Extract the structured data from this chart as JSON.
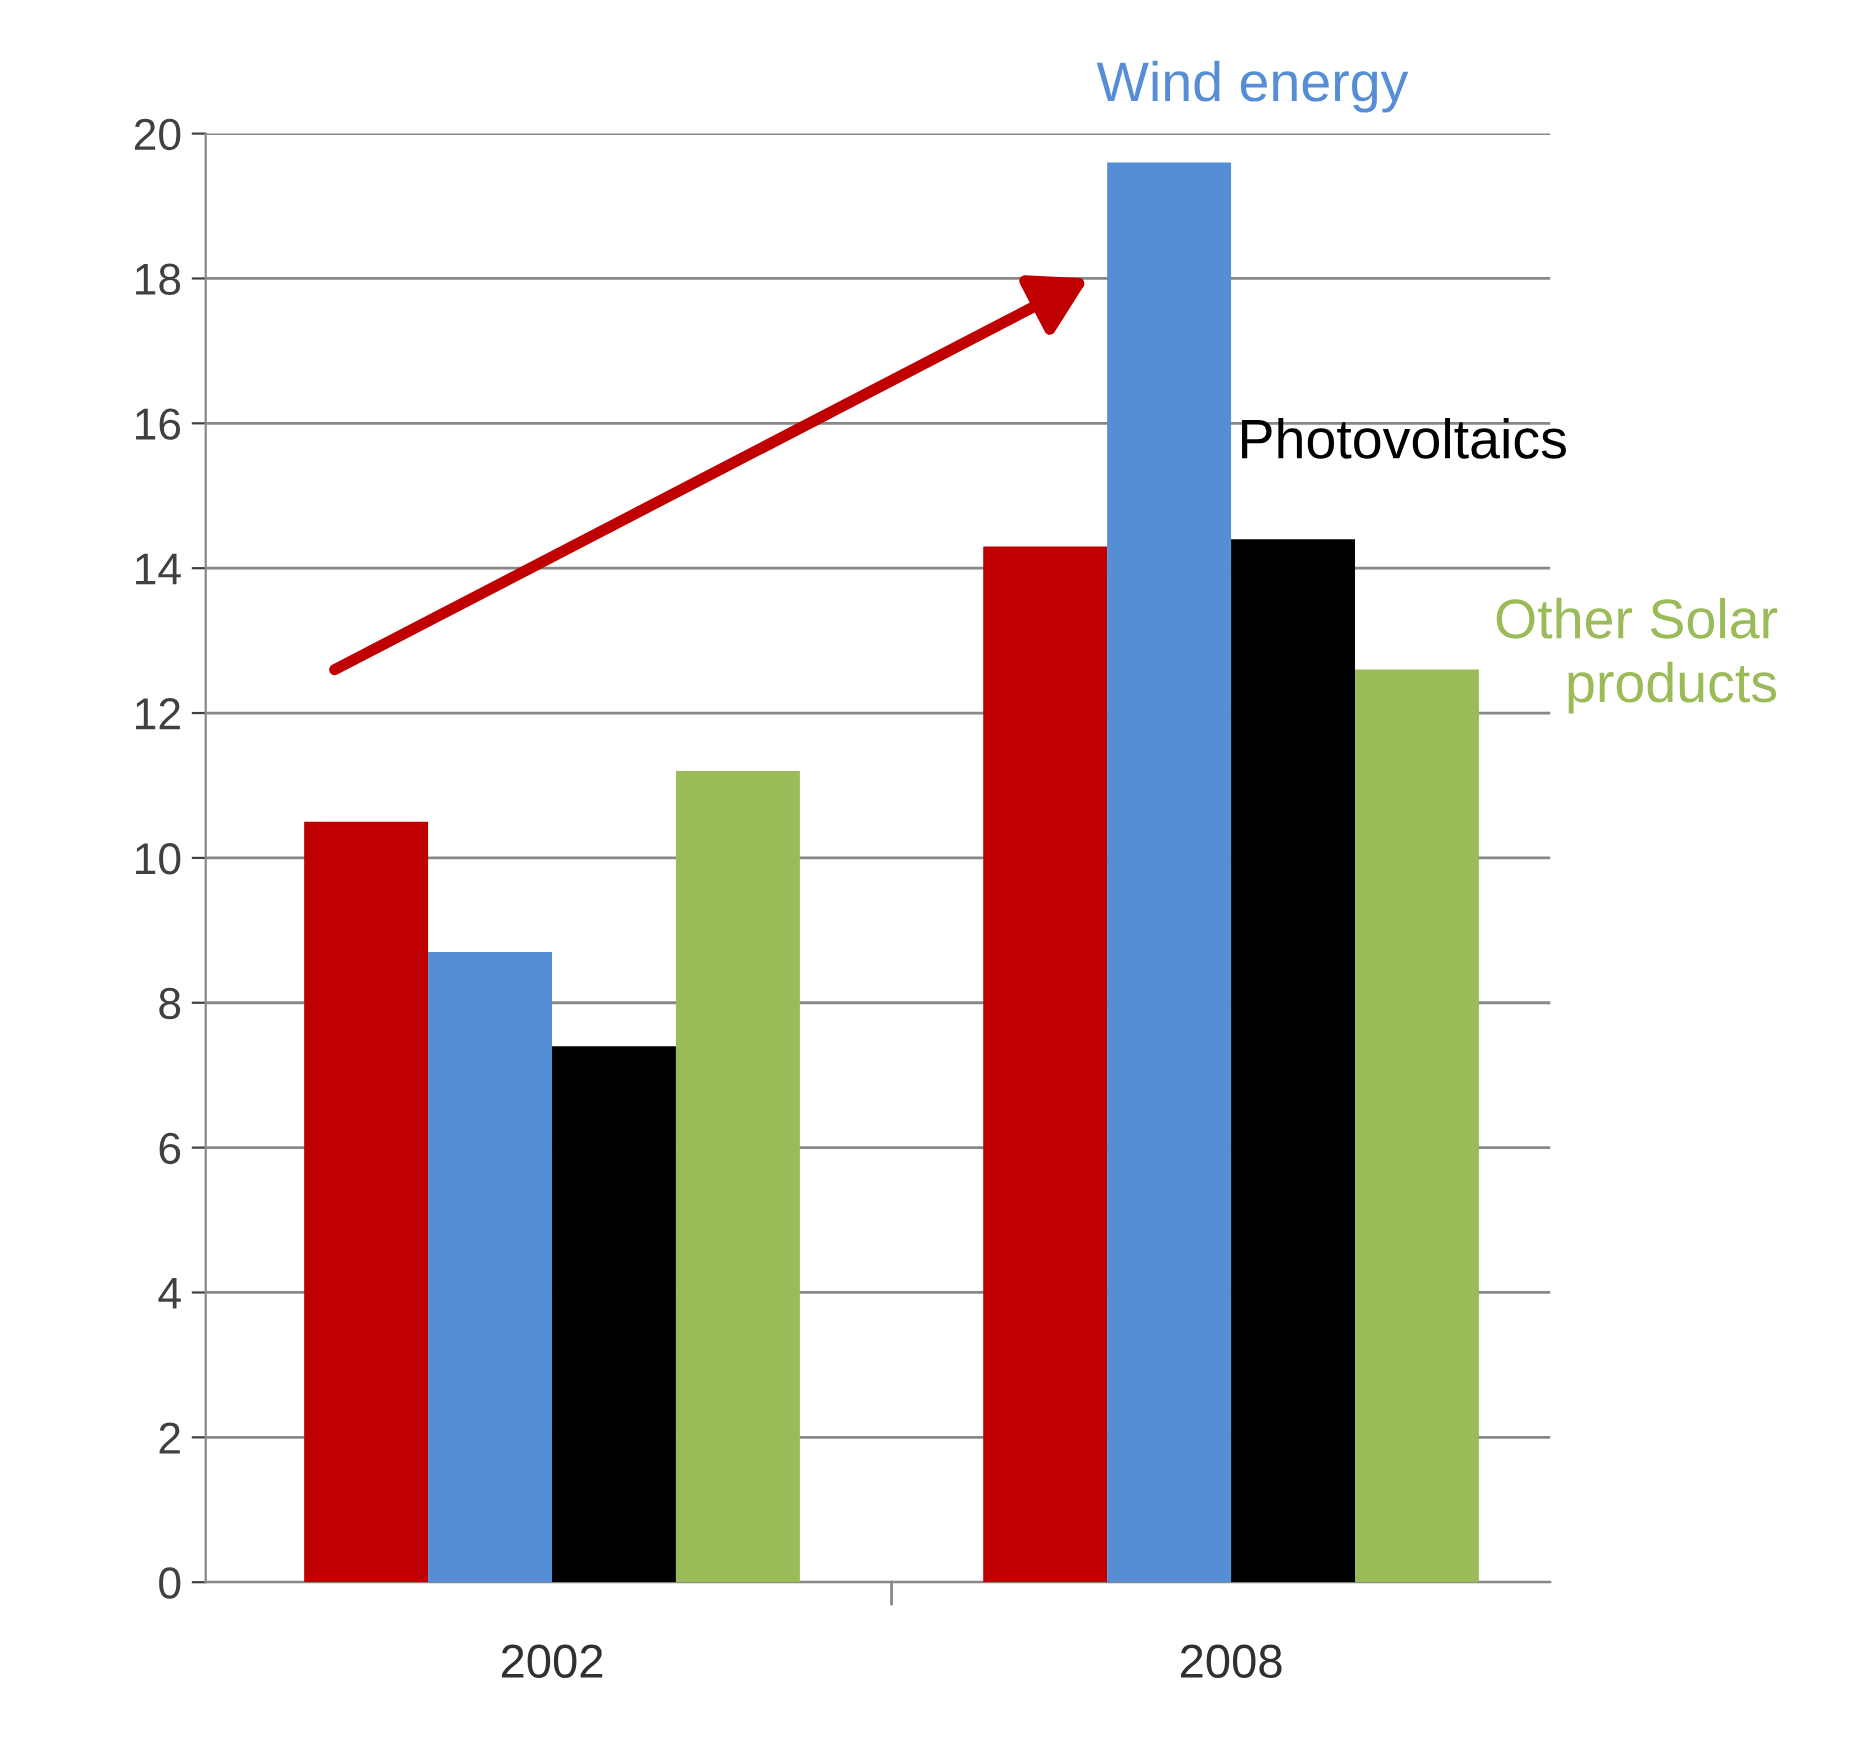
{
  "chart_data": {
    "type": "bar",
    "categories": [
      "2002",
      "2008"
    ],
    "series": [
      {
        "color": "#c00000",
        "values": [
          10.5,
          14.3
        ]
      },
      {
        "name": "Wind energy",
        "color": "#558ed5",
        "values": [
          8.7,
          19.6
        ]
      },
      {
        "name": "Photovoltaics",
        "color": "#000000",
        "values": [
          7.4,
          14.4
        ]
      },
      {
        "name": "Other Solar\nproducts",
        "color": "#9bbb59",
        "values": [
          11.2,
          12.6
        ]
      }
    ],
    "ylim": [
      0,
      20
    ],
    "yticks": [
      0,
      2,
      4,
      6,
      8,
      10,
      12,
      14,
      16,
      18,
      20
    ],
    "grid": "y",
    "legend": false
  }
}
